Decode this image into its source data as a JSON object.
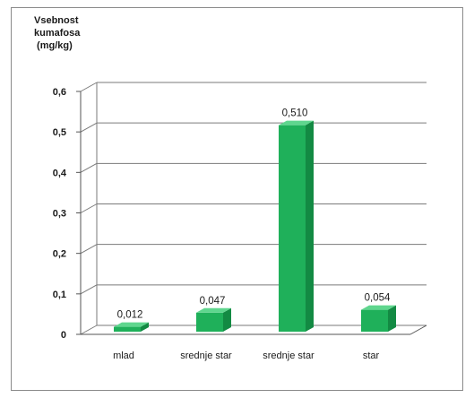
{
  "chart_data": {
    "type": "bar",
    "title": "",
    "ylabel_lines": [
      "Vsebnost",
      "kumafosa",
      " (mg/kg)"
    ],
    "xlabel": "",
    "categories": [
      "mlad",
      "srednje star",
      "srednje star",
      "star"
    ],
    "values": [
      0.012,
      0.047,
      0.51,
      0.054
    ],
    "value_labels": [
      "0,012",
      "0,047",
      "0,510",
      "0,054"
    ],
    "ylim": [
      0,
      0.6
    ],
    "yticks": [
      0,
      0.1,
      0.2,
      0.3,
      0.4,
      0.5,
      0.6
    ],
    "ytick_labels": [
      "0",
      "0,1",
      "0,2",
      "0,3",
      "0,4",
      "0,5",
      "0,6"
    ],
    "grid": true,
    "three_d": true,
    "bar_color": "#1fb05a",
    "bar_top_color": "#5fd68e",
    "bar_side_color": "#138a43",
    "grid_color": "#7a7a7a"
  }
}
